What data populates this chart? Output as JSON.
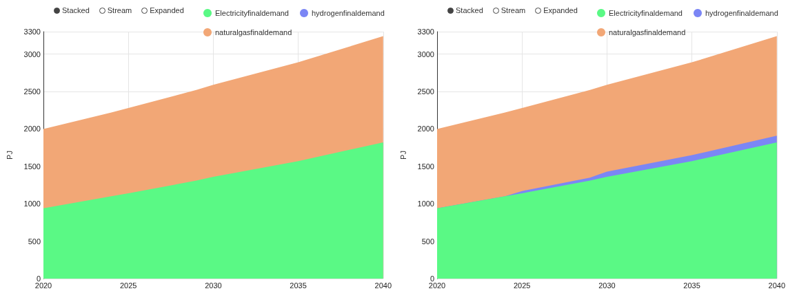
{
  "chart_data": [
    {
      "type": "area",
      "stacked": true,
      "ylabel": "PJ",
      "annotations": [
        "Stacked",
        "Stream",
        "Expanded"
      ],
      "x": [
        2020,
        2024,
        2025,
        2029,
        2030,
        2035,
        2040
      ],
      "xlim": [
        2020,
        2040
      ],
      "xticks": [
        2020,
        2025,
        2030,
        2035,
        2040
      ],
      "ylim": [
        0,
        3300
      ],
      "yticks": [
        0,
        500,
        1000,
        1500,
        2000,
        2500,
        3000,
        3300
      ],
      "grid": true,
      "legend": "top",
      "marker": "none",
      "series": [
        {
          "name": "Electricityfinaldemand",
          "color": "#5af985",
          "values": [
            940,
            1100,
            1140,
            1310,
            1360,
            1570,
            1820
          ]
        },
        {
          "name": "hydrogenfinaldemand",
          "color": "#7b86f5",
          "values": [
            null,
            null,
            null,
            null,
            null,
            null,
            null
          ]
        },
        {
          "name": "naturalgasfinaldemand",
          "color": "#f2a776",
          "values": [
            1060,
            1120,
            1140,
            1210,
            1230,
            1320,
            1420
          ]
        }
      ]
    },
    {
      "type": "area",
      "stacked": true,
      "ylabel": "PJ",
      "annotations": [
        "Stacked",
        "Stream",
        "Expanded"
      ],
      "x": [
        2020,
        2024,
        2025,
        2029,
        2030,
        2035,
        2040
      ],
      "xlim": [
        2020,
        2040
      ],
      "xticks": [
        2020,
        2025,
        2030,
        2035,
        2040
      ],
      "ylim": [
        0,
        3300
      ],
      "yticks": [
        0,
        500,
        1000,
        1500,
        2000,
        2500,
        3000,
        3300
      ],
      "grid": true,
      "legend": "top",
      "marker": "none",
      "series": [
        {
          "name": "Electricityfinaldemand",
          "color": "#5af985",
          "values": [
            940,
            1100,
            1140,
            1310,
            1360,
            1570,
            1820
          ]
        },
        {
          "name": "hydrogenfinaldemand",
          "color": "#7b86f5",
          "values": [
            0,
            0,
            30,
            40,
            70,
            80,
            90
          ]
        },
        {
          "name": "naturalgasfinaldemand",
          "color": "#f2a776",
          "values": [
            1060,
            1120,
            1110,
            1170,
            1160,
            1240,
            1330
          ]
        }
      ]
    }
  ]
}
